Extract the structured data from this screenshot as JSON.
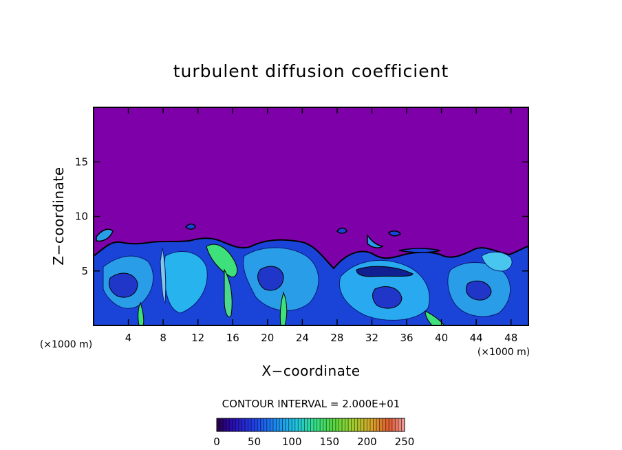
{
  "chart_data": {
    "type": "heatmap",
    "title": "turbulent diffusion coefficient",
    "xlabel": "X−coordinate",
    "ylabel": "Z−coordinate",
    "x_unit": "(×1000 m)",
    "y_unit": "(×1000 m)",
    "xlim": [
      0,
      50
    ],
    "ylim": [
      0,
      20
    ],
    "x_ticks": [
      "4",
      "8",
      "12",
      "16",
      "20",
      "24",
      "28",
      "32",
      "36",
      "40",
      "44",
      "48"
    ],
    "y_ticks": [
      "5",
      "10",
      "15"
    ],
    "contour_label": "CONTOUR INTERVAL = 2.000E+01",
    "contour_interval": 20,
    "colorbar": {
      "range": [
        0,
        250
      ],
      "ticks": [
        "0",
        "50",
        "100",
        "150",
        "200",
        "250"
      ]
    },
    "colors": {
      "background_field": "#7e00a8",
      "low": "#1f2fd8",
      "mid": "#2aa6f0",
      "high": "#3df07a"
    },
    "regions": {
      "upper_free_atmosphere_value": 0,
      "boundary_layer_top_km": 7.5,
      "boundary_layer_value_range": [
        10,
        160
      ]
    }
  }
}
